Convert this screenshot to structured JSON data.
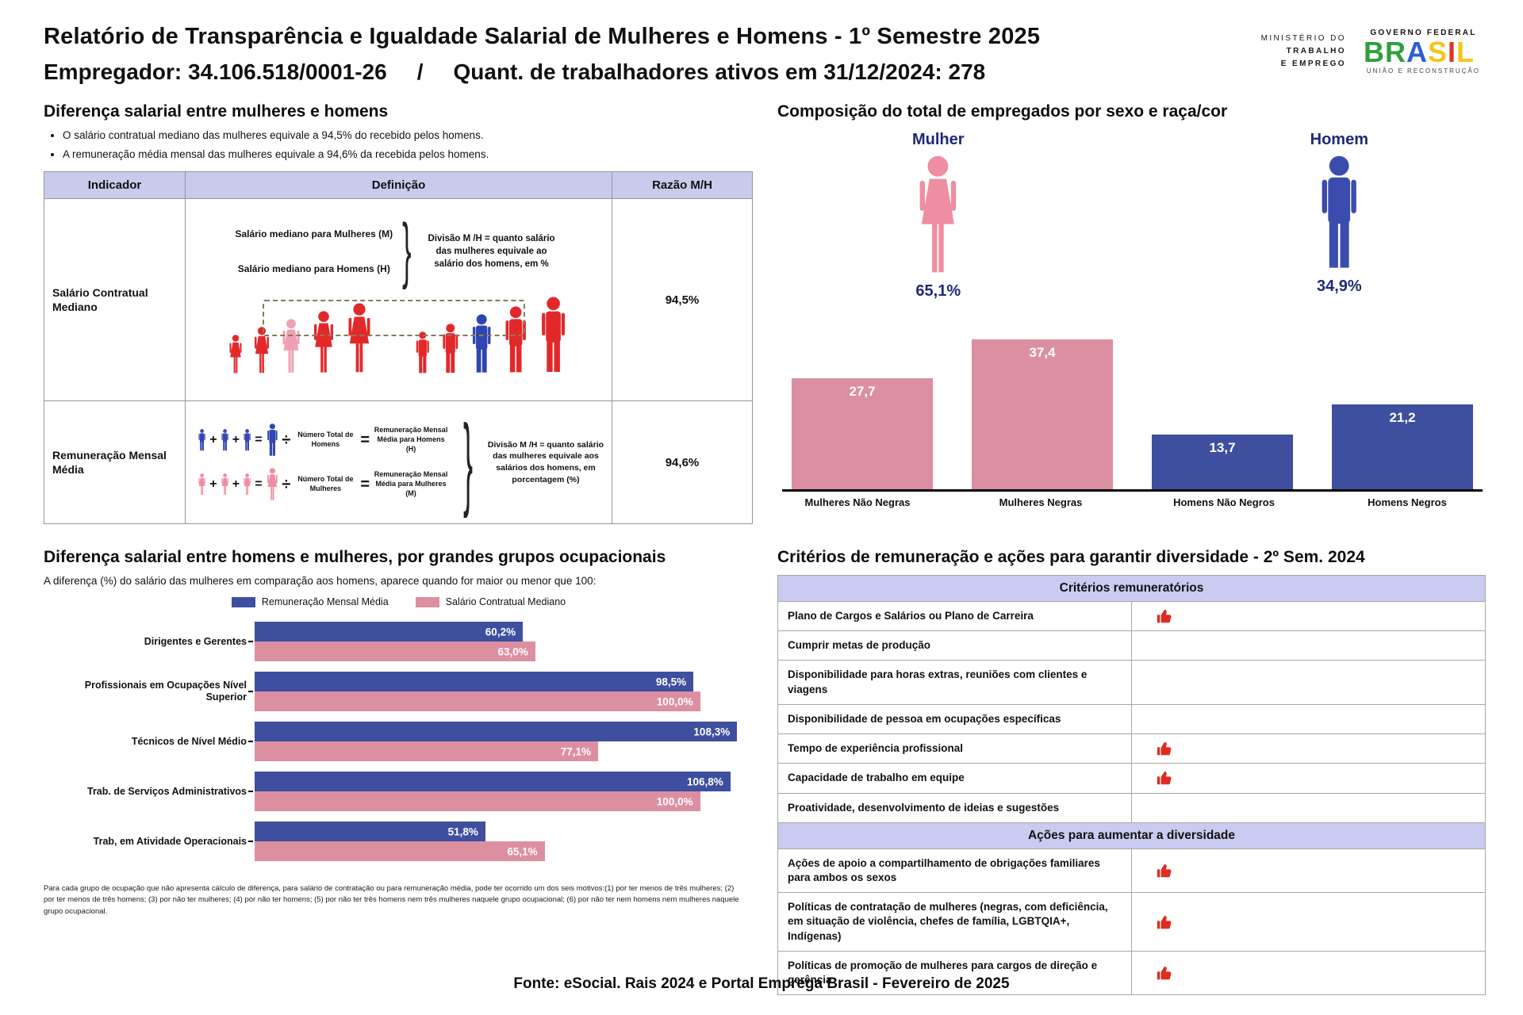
{
  "colors": {
    "lavender_header": "#c9cbed",
    "bar_pink": "#dd8fa2",
    "bar_blue": "#3e4f9f",
    "pictogram_red": "#e3282a",
    "highlight_pink": "#f0a0b4",
    "highlight_blue": "#2f46b0",
    "navy_text": "#1e2a78",
    "flag_red": "#e02b20"
  },
  "header": {
    "title": "Relatório de Transparência e Igualdade Salarial de Mulheres e Homens - 1º Semestre 2025",
    "employer": "Empregador: 34.106.518/0001-26",
    "separator": "/",
    "workers": "Quant. de trabalhadores ativos em 31/12/2024: 278",
    "ministry_lines": [
      "MINISTÉRIO DO",
      "TRABALHO",
      "E EMPREGO"
    ],
    "gov_top": "GOVERNO FEDERAL",
    "gov_brand": "BRASIL",
    "gov_bottom": "UNIÃO E RECONSTRUÇÃO"
  },
  "salary_gap": {
    "heading": "Diferença salarial entre mulheres e homens",
    "bullets": [
      "O salário contratual mediano das mulheres equivale a 94,5% do recebido pelos homens.",
      "A remuneração média mensal das mulheres equivale a 94,6% da recebida pelos homens."
    ],
    "table": {
      "headers": [
        "Indicador",
        "Definição",
        "Razão M/H"
      ],
      "row1": {
        "indicator": "Salário Contratual Mediano",
        "label_women": "Salário mediano para Mulheres (M)",
        "label_men": "Salário mediano para Homens (H)",
        "note": "Divisão M /H = quanto salário das mulheres equivale ao salário dos homens, em %",
        "ratio": "94,5%"
      },
      "row2": {
        "indicator": "Remuneração Mensal Média",
        "men_total": "Número Total de Homens",
        "men_avg": "Remuneração Mensal Média para Homens (H)",
        "women_total": "Número Total de Mulheres",
        "women_avg": "Remuneração Mensal Média para Mulheres (M)",
        "note": "Divisão M /H = quanto salário das mulheres equivale aos salários dos homens, em porcentagem (%)",
        "ratio": "94,6%"
      }
    }
  },
  "composition": {
    "heading": "Composição do total de empregados por sexo e raça/cor",
    "female_label": "Mulher",
    "female_pct": "65,1%",
    "male_label": "Homem",
    "male_pct": "34,9%",
    "bar_displays": [
      "27,7",
      "37,4",
      "13,7",
      "21,2"
    ]
  },
  "occupations": {
    "heading": "Diferença salarial entre homens e mulheres, por grandes grupos ocupacionais",
    "subtitle": "A diferença (%) do salário das mulheres em comparação aos homens, aparece quando for maior ou menor que 100:",
    "mensal_displays": [
      "60,2%",
      "98,5%",
      "108,3%",
      "106,8%",
      "51,8%"
    ],
    "mediano_displays": [
      "63,0%",
      "100,0%",
      "77,1%",
      "100,0%",
      "65,1%"
    ],
    "footnote": "Para cada grupo de ocupação que não apresenta cálculo de diferença, para salário de contratação ou para remuneração média, pode ter ocorrido um dos seis motivos:(1) por ter menos de três mulheres; (2) por ter menos de três homens; (3) por não ter mulheres; (4) por não ter homens; (5) por não ter três homens nem três mulheres naquele grupo ocupacional; (6) por não ter nem homens nem mulheres naquele grupo ocupacional."
  },
  "criteria": {
    "heading": "Critérios de remuneração e ações para garantir diversidade - 2º Sem. 2024",
    "remuneration_title": "Critérios remuneratórios",
    "remuneration_rows": [
      {
        "label": "Plano de Cargos e Salários ou Plano de Carreira",
        "checked": true
      },
      {
        "label": "Cumprir metas de produção",
        "checked": false
      },
      {
        "label": "Disponibilidade para horas extras, reuniões com clientes e viagens",
        "checked": false
      },
      {
        "label": "Disponibilidade de pessoa em ocupações específicas",
        "checked": false
      },
      {
        "label": "Tempo de experiência profissional",
        "checked": true
      },
      {
        "label": "Capacidade de trabalho em equipe",
        "checked": true
      },
      {
        "label": "Proatividade, desenvolvimento de ideias e sugestões",
        "checked": false
      }
    ],
    "diversity_title": "Ações para aumentar a diversidade",
    "diversity_rows": [
      {
        "label": "Ações de apoio a compartilhamento de obrigações familiares para ambos os sexos",
        "checked": true
      },
      {
        "label": "Políticas de contratação de mulheres (negras, com deficiência, em situação de violência, chefes de família, LGBTQIA+, Indígenas)",
        "checked": true
      },
      {
        "label": "Políticas de promoção de mulheres para cargos de direção e gerência",
        "checked": true
      }
    ]
  },
  "footer": {
    "source": "Fonte: eSocial. Rais 2024 e Portal Emprega Brasil - Fevereiro de 2025"
  },
  "chart_data": [
    {
      "type": "bar",
      "title": "Composição do total de empregados por sexo e raça/cor",
      "categories": [
        "Mulheres Não Negras",
        "Mulheres Negras",
        "Homens Não Negros",
        "Homens Negros"
      ],
      "values": [
        27.7,
        37.4,
        13.7,
        21.2
      ],
      "unit": "%",
      "colors": [
        "#dd8fa2",
        "#dd8fa2",
        "#3e4f9f",
        "#3e4f9f"
      ],
      "annotations": {
        "Mulher": 65.1,
        "Homem": 34.9
      },
      "ylim": [
        0,
        40
      ],
      "grid": false,
      "value_labels": "inside-top"
    },
    {
      "type": "bar",
      "orientation": "horizontal",
      "title": "Diferença salarial entre homens e mulheres, por grandes grupos ocupacionais",
      "categories": [
        "Dirigentes e Gerentes",
        "Profissionais em Ocupações Nível Superior",
        "Técnicos de Nível Médio",
        "Trab. de Serviços Administrativos",
        "Trab, em Atividade Operacionais"
      ],
      "series": [
        {
          "name": "Remuneração Mensal Média",
          "color": "#3e4f9f",
          "values": [
            60.2,
            98.5,
            108.3,
            106.8,
            51.8
          ]
        },
        {
          "name": "Salário Contratual Mediano",
          "color": "#dd8fa2",
          "values": [
            63.0,
            100.0,
            77.1,
            100.0,
            65.1
          ]
        }
      ],
      "unit": "%",
      "xlim": [
        0,
        115
      ],
      "legend_position": "top",
      "grid": false,
      "value_labels": "inside-end"
    }
  ]
}
